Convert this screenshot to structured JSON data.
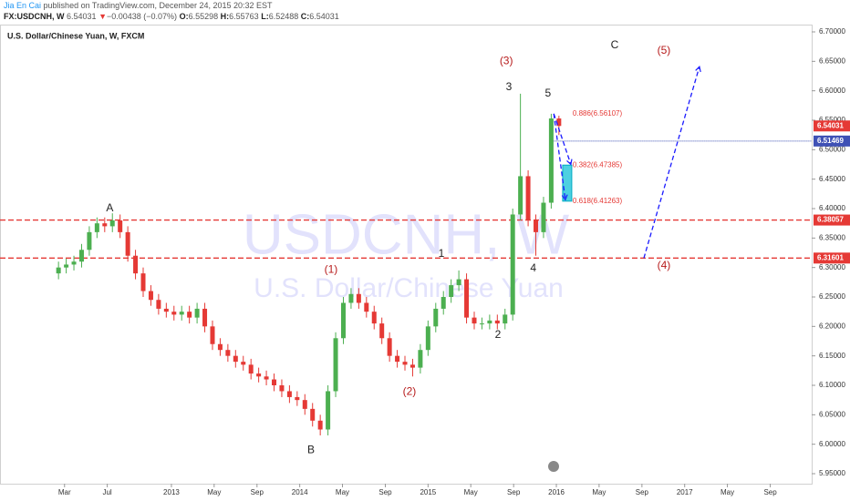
{
  "header": {
    "author": "Jia En Cai",
    "published": "published on TradingView.com, December 24, 2015 20:32 EST",
    "symbol": "FX:USDCNH, W",
    "last": "6.54031",
    "arrow": "▼",
    "change": "−0.00438 (−0.07%)",
    "o_label": "O:",
    "o_value": "6.55298",
    "h_label": "H:",
    "h_value": "6.55763",
    "l_label": "L:",
    "l_value": "6.52488",
    "c_label": "C:",
    "c_value": "6.54031"
  },
  "chart_data": {
    "type": "candlestick",
    "title": "U.S. Dollar/Chinese Yuan, W, FXCM",
    "watermark": "USDCNH, W",
    "watermark_sub": "U.S. Dollar/Chinese Yuan",
    "up_color": "#4caf50",
    "down_color": "#e53935",
    "x": [
      2012.12,
      2012.18,
      2012.24,
      2012.3,
      2012.36,
      2012.42,
      2012.48,
      2012.54,
      2012.6,
      2012.66,
      2012.72,
      2012.78,
      2012.84,
      2012.9,
      2012.96,
      2013.02,
      2013.08,
      2013.14,
      2013.2,
      2013.26,
      2013.32,
      2013.38,
      2013.44,
      2013.5,
      2013.56,
      2013.62,
      2013.68,
      2013.74,
      2013.8,
      2013.86,
      2013.92,
      2013.98,
      2014.04,
      2014.1,
      2014.16,
      2014.22,
      2014.28,
      2014.34,
      2014.4,
      2014.46,
      2014.52,
      2014.58,
      2014.64,
      2014.7,
      2014.76,
      2014.82,
      2014.88,
      2014.94,
      2015.0,
      2015.06,
      2015.12,
      2015.18,
      2015.24,
      2015.3,
      2015.36,
      2015.42,
      2015.48,
      2015.54,
      2015.6,
      2015.66,
      2015.72,
      2015.78,
      2015.84,
      2015.9,
      2015.96,
      2016.02
    ],
    "open": [
      6.29,
      6.3,
      6.305,
      6.31,
      6.33,
      6.36,
      6.375,
      6.37,
      6.38,
      6.36,
      6.32,
      6.29,
      6.26,
      6.245,
      6.23,
      6.225,
      6.22,
      6.225,
      6.215,
      6.23,
      6.2,
      6.17,
      6.16,
      6.15,
      6.14,
      6.135,
      6.12,
      6.115,
      6.11,
      6.1,
      6.09,
      6.08,
      6.075,
      6.06,
      6.04,
      6.025,
      6.09,
      6.18,
      6.24,
      6.255,
      6.24,
      6.225,
      6.205,
      6.18,
      6.15,
      6.14,
      6.135,
      6.13,
      6.16,
      6.2,
      6.23,
      6.25,
      6.27,
      6.28,
      6.215,
      6.205,
      6.205,
      6.21,
      6.205,
      6.22,
      6.39,
      6.455,
      6.38,
      6.36,
      6.41,
      6.55298
    ],
    "high": [
      6.31,
      6.315,
      6.32,
      6.34,
      6.37,
      6.385,
      6.385,
      6.392,
      6.39,
      6.37,
      6.33,
      6.3,
      6.27,
      6.255,
      6.24,
      6.235,
      6.235,
      6.235,
      6.24,
      6.24,
      6.21,
      6.18,
      6.17,
      6.16,
      6.15,
      6.145,
      6.13,
      6.125,
      6.12,
      6.11,
      6.1,
      6.09,
      6.085,
      6.07,
      6.05,
      6.1,
      6.19,
      6.25,
      6.265,
      6.265,
      6.25,
      6.235,
      6.215,
      6.19,
      6.16,
      6.15,
      6.145,
      6.17,
      6.21,
      6.24,
      6.26,
      6.28,
      6.295,
      6.29,
      6.225,
      6.215,
      6.22,
      6.22,
      6.23,
      6.4,
      6.595,
      6.465,
      6.39,
      6.42,
      6.561,
      6.55763
    ],
    "low": [
      6.28,
      6.29,
      6.295,
      6.3,
      6.32,
      6.35,
      6.36,
      6.36,
      6.35,
      6.31,
      6.28,
      6.25,
      6.235,
      6.22,
      6.215,
      6.21,
      6.21,
      6.205,
      6.205,
      6.19,
      6.16,
      6.15,
      6.14,
      6.13,
      6.125,
      6.11,
      6.105,
      6.1,
      6.09,
      6.08,
      6.07,
      6.065,
      6.05,
      6.03,
      6.015,
      6.015,
      6.08,
      6.17,
      6.23,
      6.23,
      6.215,
      6.195,
      6.17,
      6.14,
      6.13,
      6.125,
      6.115,
      6.12,
      6.15,
      6.19,
      6.22,
      6.24,
      6.26,
      6.205,
      6.195,
      6.195,
      6.195,
      6.195,
      6.195,
      6.21,
      6.38,
      6.37,
      6.32,
      6.35,
      6.4,
      6.52488
    ],
    "close": [
      6.3,
      6.305,
      6.31,
      6.33,
      6.36,
      6.375,
      6.37,
      6.38,
      6.36,
      6.32,
      6.29,
      6.26,
      6.245,
      6.23,
      6.225,
      6.22,
      6.225,
      6.215,
      6.23,
      6.2,
      6.17,
      6.16,
      6.15,
      6.14,
      6.135,
      6.12,
      6.115,
      6.11,
      6.1,
      6.09,
      6.08,
      6.075,
      6.06,
      6.04,
      6.025,
      6.09,
      6.18,
      6.24,
      6.255,
      6.24,
      6.225,
      6.205,
      6.18,
      6.15,
      6.14,
      6.135,
      6.13,
      6.16,
      6.2,
      6.23,
      6.25,
      6.27,
      6.28,
      6.215,
      6.205,
      6.205,
      6.21,
      6.205,
      6.22,
      6.39,
      6.455,
      6.38,
      6.36,
      6.41,
      6.553,
      6.54031
    ],
    "last_color": "#e53935",
    "xlim": [
      2011.664,
      2017.99
    ],
    "ylim": [
      5.95,
      6.7
    ],
    "xticks": [
      {
        "value": 2012.167,
        "label": "Mar"
      },
      {
        "value": 2012.5,
        "label": "Jul"
      },
      2013,
      {
        "value": 2013.333,
        "label": "May"
      },
      {
        "value": 2013.667,
        "label": "Sep"
      },
      2014,
      {
        "value": 2014.333,
        "label": "May"
      },
      {
        "value": 2014.667,
        "label": "Sep"
      },
      2015,
      {
        "value": 2015.333,
        "label": "May"
      },
      {
        "value": 2015.667,
        "label": "Sep"
      },
      2016,
      {
        "value": 2016.333,
        "label": "May"
      },
      {
        "value": 2016.667,
        "label": "Sep"
      },
      2017,
      {
        "value": 2017.333,
        "label": "May"
      },
      {
        "value": 2017.667,
        "label": "Sep"
      }
    ],
    "yticks": [
      {
        "value": 5.95,
        "label": "5.95000"
      },
      {
        "value": 6.0,
        "label": "6.00000"
      },
      {
        "value": 6.05,
        "label": "6.05000"
      },
      {
        "value": 6.1,
        "label": "6.10000"
      },
      {
        "value": 6.15,
        "label": "6.15000"
      },
      {
        "value": 6.2,
        "label": "6.20000"
      },
      {
        "value": 6.25,
        "label": "6.25000"
      },
      {
        "value": 6.3,
        "label": "6.30000"
      },
      {
        "value": 6.35,
        "label": "6.35000"
      },
      {
        "value": 6.4,
        "label": "6.40000"
      },
      {
        "value": 6.45,
        "label": "6.45000"
      },
      {
        "value": 6.5,
        "label": "6.50000"
      },
      {
        "value": 6.55,
        "label": "6.55000"
      },
      {
        "value": 6.6,
        "label": "6.60000"
      },
      {
        "value": 6.65,
        "label": "6.65000"
      },
      {
        "value": 6.7,
        "label": "6.70000"
      }
    ],
    "hlines": [
      {
        "value": 6.38057,
        "color": "#e53935",
        "style": "dashed",
        "from": 2011.664
      },
      {
        "value": 6.31601,
        "color": "#e53935",
        "style": "dashed",
        "from": 2011.664
      },
      {
        "value": 6.51469,
        "color": "#3f51b5",
        "style": "dotted",
        "from": 2015.96
      }
    ],
    "annotations": [
      {
        "text": "A",
        "x": 2012.52,
        "y": 6.4,
        "color": "#222222"
      },
      {
        "text": "B",
        "x": 2014.088,
        "y": 5.99,
        "color": "#222222"
      },
      {
        "text": "(1)",
        "x": 2014.244,
        "y": 6.296,
        "color": "#b71c1c"
      },
      {
        "text": "(2)",
        "x": 2014.855,
        "y": 6.089,
        "color": "#b71c1c"
      },
      {
        "text": "1",
        "x": 2015.104,
        "y": 6.323,
        "color": "#222222"
      },
      {
        "text": "2",
        "x": 2015.545,
        "y": 6.185,
        "color": "#222222"
      },
      {
        "text": "(3)",
        "x": 2015.61,
        "y": 6.65,
        "color": "#b71c1c"
      },
      {
        "text": "3",
        "x": 2015.63,
        "y": 6.606,
        "color": "#222222"
      },
      {
        "text": "4",
        "x": 2015.82,
        "y": 6.298,
        "color": "#222222"
      },
      {
        "text": "5",
        "x": 2015.935,
        "y": 6.595,
        "color": "#222222"
      },
      {
        "text": "C",
        "x": 2016.454,
        "y": 6.677,
        "color": "#222222"
      },
      {
        "text": "(5)",
        "x": 2016.838,
        "y": 6.668,
        "color": "#b71c1c"
      },
      {
        "text": "(4)",
        "x": 2016.838,
        "y": 6.303,
        "color": "#b71c1c"
      }
    ],
    "fib_labels": [
      {
        "text": "0.886(6.56107)",
        "x": 2016.127,
        "y": 6.56107
      },
      {
        "text": "0.382(6.47385)",
        "x": 2016.127,
        "y": 6.47385
      },
      {
        "text": "0.618(6.41263)",
        "x": 2016.127,
        "y": 6.41263
      }
    ],
    "fib_color": "#e53935",
    "zone": {
      "x": [
        2016.049,
        2016.12
      ],
      "y": [
        6.47385,
        6.41263
      ],
      "color": "#4dd0e1"
    },
    "projections": [
      {
        "x": [
          2015.98,
          2016.113
        ],
        "y": [
          6.561,
          6.475
        ]
      },
      {
        "x": [
          2015.98,
          2016.07
        ],
        "y": [
          6.561,
          6.415
        ]
      },
      {
        "x": [
          2016.682,
          2017.115
        ],
        "y": [
          6.316,
          6.641
        ]
      }
    ],
    "projection_color": "#1a1aff"
  }
}
